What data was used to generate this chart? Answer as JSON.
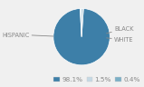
{
  "slices": [
    98.1,
    1.5,
    0.4
  ],
  "labels": [
    "HISPANIC",
    "BLACK",
    "WHITE"
  ],
  "colors": [
    "#3d7fa8",
    "#c5d9e5",
    "#7bafc6"
  ],
  "legend_colors": [
    "#3d7fa8",
    "#c5d9e5",
    "#7bafc6"
  ],
  "legend_labels": [
    "98.1%",
    "1.5%",
    "0.4%"
  ],
  "background_color": "#f0f0f0",
  "text_color": "#888888",
  "label_fontsize": 4.8,
  "legend_fontsize": 5.2,
  "startangle": 93
}
